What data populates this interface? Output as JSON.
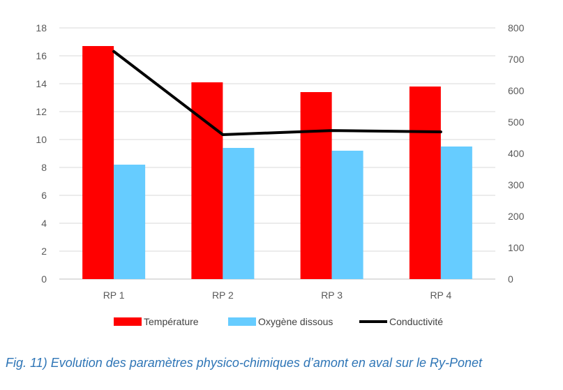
{
  "chart_data": {
    "type": "bar",
    "categories": [
      "RP 1",
      "RP 2",
      "RP 3",
      "RP 4"
    ],
    "series": [
      {
        "name": "Température",
        "kind": "bar",
        "axis": "left",
        "color": "#FF0000",
        "values": [
          16.7,
          14.1,
          13.4,
          13.8
        ]
      },
      {
        "name": "Oxygène dissous",
        "kind": "bar",
        "axis": "left",
        "color": "#66CCFF",
        "values": [
          8.2,
          9.4,
          9.2,
          9.5
        ]
      },
      {
        "name": "Conductivité",
        "kind": "line",
        "axis": "right",
        "color": "#000000",
        "values": [
          725,
          460,
          473,
          469
        ]
      }
    ],
    "y_left": {
      "min": 0,
      "max": 18,
      "ticks": [
        "0",
        "2",
        "4",
        "6",
        "8",
        "10",
        "12",
        "14",
        "16",
        "18"
      ]
    },
    "y_right": {
      "min": 0,
      "max": 800,
      "ticks": [
        "0",
        "100",
        "200",
        "300",
        "400",
        "500",
        "600",
        "700",
        "800"
      ]
    },
    "grid": true,
    "legend_position": "bottom"
  },
  "caption": "Fig. 11) Evolution des paramètres physico-chimiques d’amont en aval sur le Ry-Ponet"
}
